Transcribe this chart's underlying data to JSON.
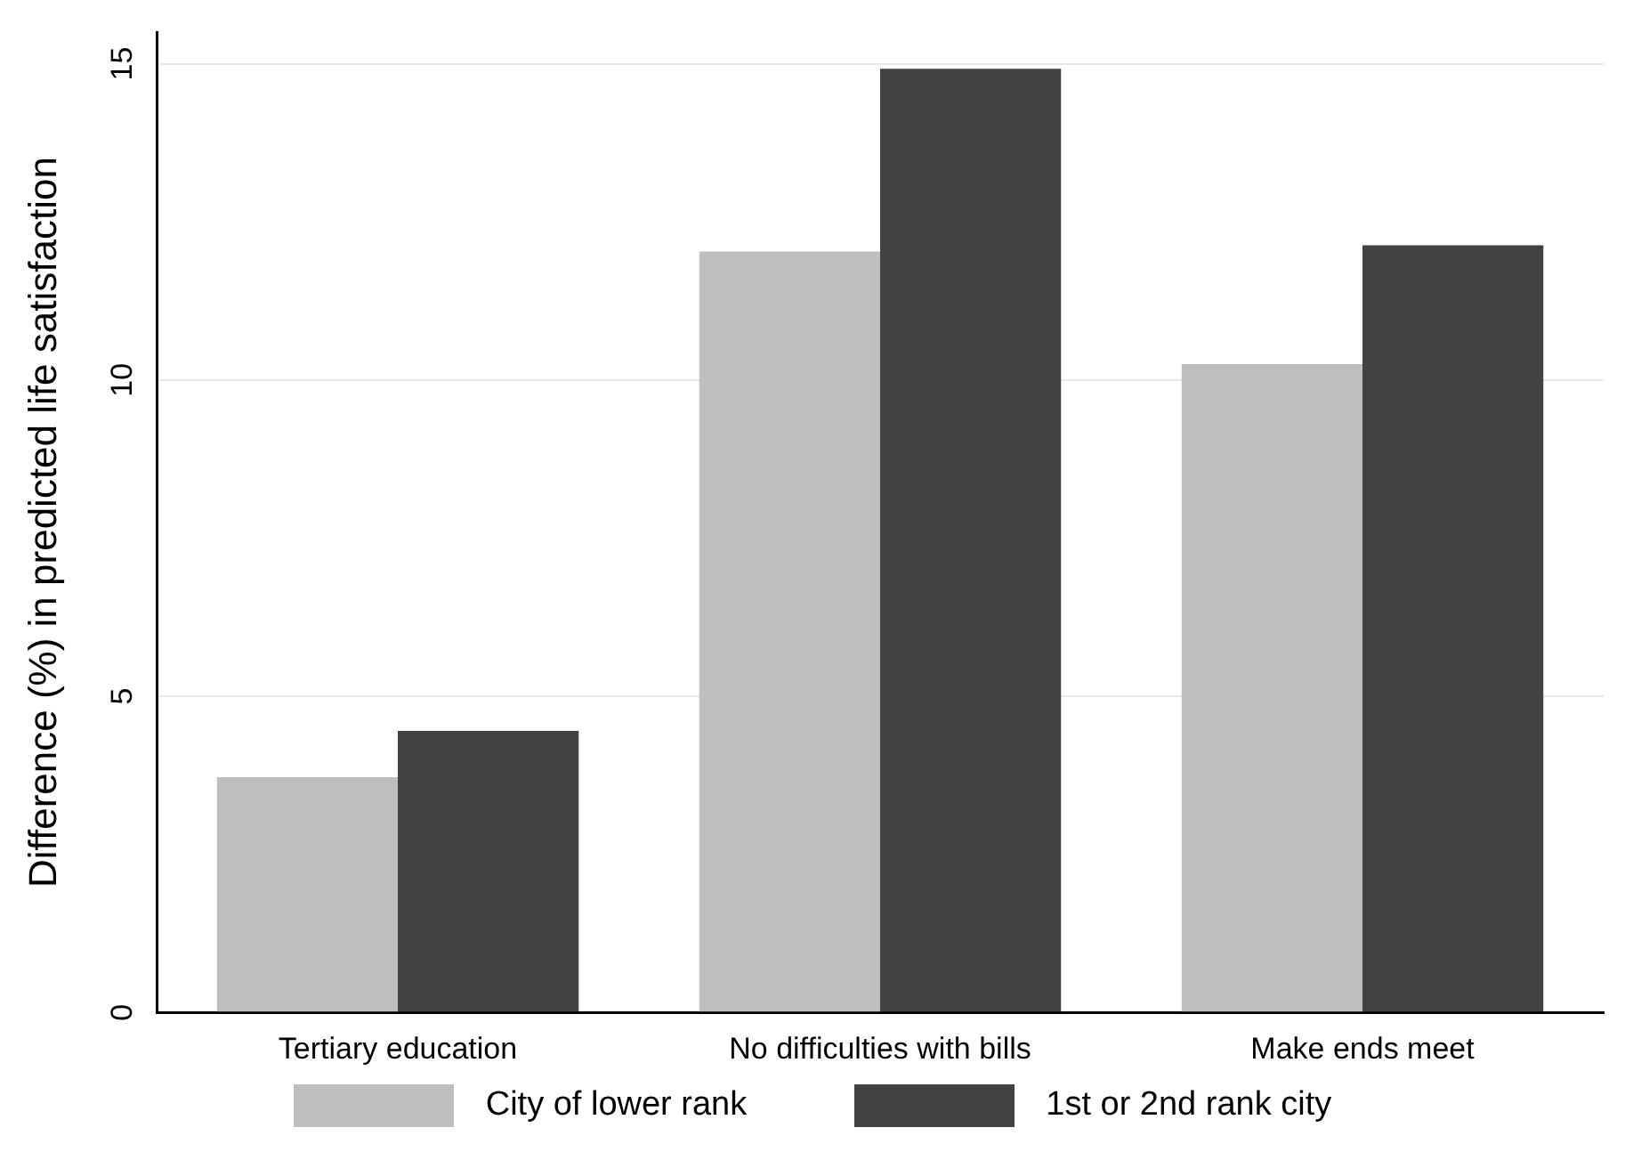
{
  "chart_data": {
    "type": "bar",
    "ylabel": "Difference (%) in predicted life satisfaction",
    "categories": [
      "Tertiary education",
      "No difficulties with bills",
      "Make ends meet"
    ],
    "series": [
      {
        "name": "City of lower rank",
        "color": "#bebebe",
        "values": [
          3.72,
          12.03,
          10.25
        ]
      },
      {
        "name": "1st or 2nd rank city",
        "color": "#424242",
        "values": [
          4.45,
          14.92,
          12.13
        ]
      }
    ],
    "ylim": [
      0,
      15.5
    ],
    "yticks": [
      0,
      5,
      10,
      15
    ],
    "grid": "y",
    "legend": "bottom"
  }
}
